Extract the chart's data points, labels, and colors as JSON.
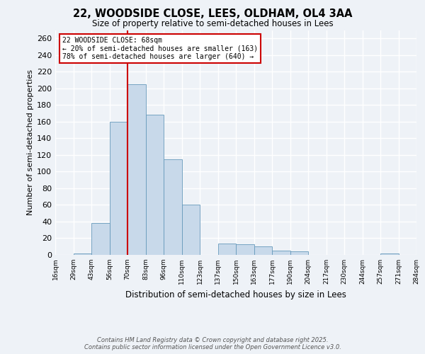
{
  "title": "22, WOODSIDE CLOSE, LEES, OLDHAM, OL4 3AA",
  "subtitle": "Size of property relative to semi-detached houses in Lees",
  "xlabel": "Distribution of semi-detached houses by size in Lees",
  "ylabel": "Number of semi-detached properties",
  "bar_color": "#c8d9ea",
  "bar_edge_color": "#6699bb",
  "background_color": "#eef2f7",
  "grid_color": "#ffffff",
  "annotation_box_color": "#cc0000",
  "annotation_line_color": "#cc0000",
  "property_size_label": "22 WOODSIDE CLOSE: 68sqm",
  "smaller_pct": "20%",
  "smaller_count": 163,
  "larger_pct": "78%",
  "larger_count": 640,
  "bin_labels": [
    "16sqm",
    "29sqm",
    "43sqm",
    "56sqm",
    "70sqm",
    "83sqm",
    "96sqm",
    "110sqm",
    "123sqm",
    "137sqm",
    "150sqm",
    "163sqm",
    "177sqm",
    "190sqm",
    "204sqm",
    "217sqm",
    "230sqm",
    "244sqm",
    "257sqm",
    "271sqm",
    "284sqm"
  ],
  "bar_heights": [
    0,
    2,
    38,
    160,
    205,
    168,
    115,
    60,
    0,
    14,
    13,
    10,
    5,
    4,
    0,
    0,
    0,
    0,
    2,
    0
  ],
  "red_line_index": 4,
  "annotation_bar_index": 0,
  "ylim": [
    0,
    270
  ],
  "yticks": [
    0,
    20,
    40,
    60,
    80,
    100,
    120,
    140,
    160,
    180,
    200,
    220,
    240,
    260
  ],
  "footer_line1": "Contains HM Land Registry data © Crown copyright and database right 2025.",
  "footer_line2": "Contains public sector information licensed under the Open Government Licence v3.0."
}
